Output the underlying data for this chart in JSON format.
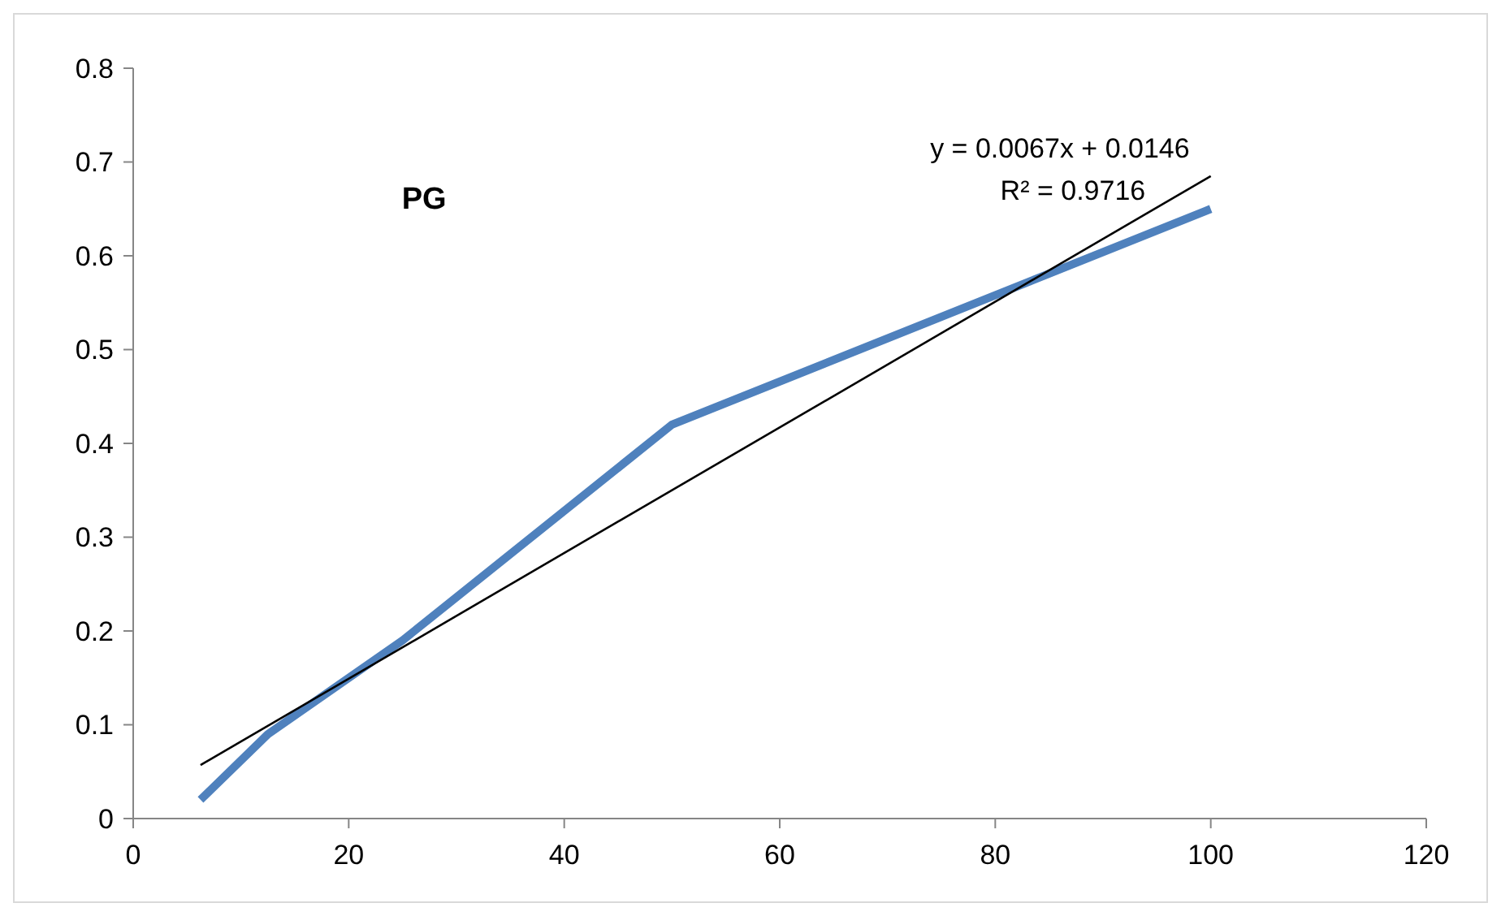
{
  "chart_data": {
    "type": "line",
    "title": "PG",
    "xlim": [
      0,
      120
    ],
    "xticks": [
      0,
      20,
      40,
      60,
      80,
      100,
      120
    ],
    "ylim": [
      0,
      0.8
    ],
    "yticks": [
      0,
      0.1,
      0.2,
      0.3,
      0.4,
      0.5,
      0.6,
      0.7,
      0.8
    ],
    "grid": false,
    "marker": "none",
    "series": [
      {
        "color": "#4f81bd",
        "x": [
          6.25,
          12.5,
          25,
          50,
          100
        ],
        "values": [
          0.02,
          0.09,
          0.19,
          0.42,
          0.65
        ]
      },
      {
        "type": "line",
        "color": "#000000",
        "x": [
          6.25,
          100
        ],
        "values": [
          0.057,
          0.685
        ]
      }
    ],
    "annotations": [
      "y = 0.0067x + 0.0146",
      "R² = 0.9716"
    ]
  }
}
